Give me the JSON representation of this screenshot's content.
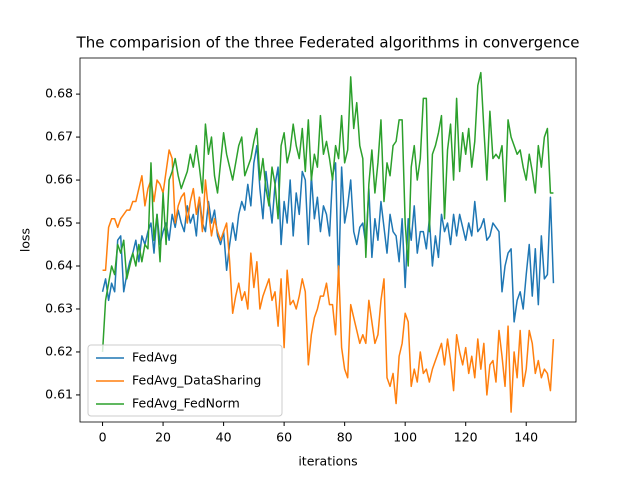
{
  "chart_data": {
    "type": "line",
    "title": "The comparision of the three Federated algorithms in convergence",
    "x_label": "iterations",
    "y_label": "loss",
    "x": [
      0,
      1,
      2,
      3,
      4,
      5,
      6,
      7,
      8,
      9,
      10,
      11,
      12,
      13,
      14,
      15,
      16,
      17,
      18,
      19,
      20,
      21,
      22,
      23,
      24,
      25,
      26,
      27,
      28,
      29,
      30,
      31,
      32,
      33,
      34,
      35,
      36,
      37,
      38,
      39,
      40,
      41,
      42,
      43,
      44,
      45,
      46,
      47,
      48,
      49,
      50,
      51,
      52,
      53,
      54,
      55,
      56,
      57,
      58,
      59,
      60,
      61,
      62,
      63,
      64,
      65,
      66,
      67,
      68,
      69,
      70,
      71,
      72,
      73,
      74,
      75,
      76,
      77,
      78,
      79,
      80,
      81,
      82,
      83,
      84,
      85,
      86,
      87,
      88,
      89,
      90,
      91,
      92,
      93,
      94,
      95,
      96,
      97,
      98,
      99,
      100,
      101,
      102,
      103,
      104,
      105,
      106,
      107,
      108,
      109,
      110,
      111,
      112,
      113,
      114,
      115,
      116,
      117,
      118,
      119,
      120,
      121,
      122,
      123,
      124,
      125,
      126,
      127,
      128,
      129,
      130,
      131,
      132,
      133,
      134,
      135,
      136,
      137,
      138,
      139,
      140,
      141,
      142,
      143,
      144,
      145,
      146,
      147,
      148,
      149
    ],
    "series": [
      {
        "name": "FedAvg",
        "color": "#1f77b4",
        "values": [
          0.634,
          0.637,
          0.632,
          0.636,
          0.634,
          0.646,
          0.647,
          0.634,
          0.638,
          0.641,
          0.643,
          0.646,
          0.641,
          0.647,
          0.645,
          0.648,
          0.65,
          0.643,
          0.652,
          0.645,
          0.648,
          0.65,
          0.646,
          0.652,
          0.649,
          0.653,
          0.65,
          0.648,
          0.654,
          0.65,
          0.652,
          0.647,
          0.656,
          0.65,
          0.648,
          0.655,
          0.65,
          0.653,
          0.647,
          0.645,
          0.648,
          0.639,
          0.645,
          0.65,
          0.646,
          0.652,
          0.655,
          0.653,
          0.659,
          0.654,
          0.664,
          0.668,
          0.658,
          0.651,
          0.662,
          0.656,
          0.65,
          0.659,
          0.663,
          0.645,
          0.655,
          0.65,
          0.66,
          0.647,
          0.657,
          0.652,
          0.662,
          0.66,
          0.645,
          0.661,
          0.651,
          0.656,
          0.648,
          0.654,
          0.652,
          0.647,
          0.661,
          0.664,
          0.636,
          0.663,
          0.65,
          0.654,
          0.66,
          0.648,
          0.645,
          0.649,
          0.65,
          0.645,
          0.658,
          0.642,
          0.651,
          0.646,
          0.655,
          0.649,
          0.643,
          0.652,
          0.648,
          0.647,
          0.641,
          0.651,
          0.635,
          0.651,
          0.646,
          0.654,
          0.643,
          0.648,
          0.648,
          0.644,
          0.651,
          0.64,
          0.647,
          0.642,
          0.652,
          0.648,
          0.65,
          0.645,
          0.652,
          0.647,
          0.652,
          0.649,
          0.646,
          0.65,
          0.647,
          0.655,
          0.648,
          0.649,
          0.651,
          0.646,
          0.647,
          0.65,
          0.649,
          0.648,
          0.634,
          0.64,
          0.643,
          0.644,
          0.627,
          0.632,
          0.634,
          0.63,
          0.638,
          0.645,
          0.633,
          0.644,
          0.631,
          0.647,
          0.637,
          0.638,
          0.656,
          0.636
        ]
      },
      {
        "name": "FedAvg_DataSharing",
        "color": "#ff7f0e",
        "values": [
          0.639,
          0.639,
          0.649,
          0.651,
          0.651,
          0.649,
          0.651,
          0.652,
          0.653,
          0.653,
          0.655,
          0.655,
          0.658,
          0.661,
          0.654,
          0.658,
          0.66,
          0.655,
          0.66,
          0.659,
          0.657,
          0.662,
          0.667,
          0.665,
          0.65,
          0.654,
          0.656,
          0.657,
          0.65,
          0.655,
          0.658,
          0.652,
          0.656,
          0.648,
          0.66,
          0.653,
          0.647,
          0.651,
          0.648,
          0.646,
          0.648,
          0.65,
          0.641,
          0.629,
          0.633,
          0.636,
          0.632,
          0.634,
          0.63,
          0.643,
          0.635,
          0.641,
          0.63,
          0.633,
          0.635,
          0.637,
          0.632,
          0.634,
          0.626,
          0.637,
          0.621,
          0.639,
          0.631,
          0.632,
          0.63,
          0.633,
          0.637,
          0.634,
          0.617,
          0.624,
          0.628,
          0.63,
          0.633,
          0.633,
          0.636,
          0.631,
          0.631,
          0.624,
          0.64,
          0.621,
          0.616,
          0.614,
          0.631,
          0.628,
          0.625,
          0.622,
          0.624,
          0.622,
          0.632,
          0.627,
          0.622,
          0.624,
          0.632,
          0.637,
          0.614,
          0.612,
          0.615,
          0.608,
          0.619,
          0.622,
          0.629,
          0.627,
          0.612,
          0.616,
          0.613,
          0.62,
          0.615,
          0.616,
          0.613,
          0.616,
          0.618,
          0.62,
          0.622,
          0.617,
          0.623,
          0.618,
          0.611,
          0.624,
          0.62,
          0.617,
          0.621,
          0.615,
          0.619,
          0.614,
          0.623,
          0.616,
          0.622,
          0.61,
          0.617,
          0.618,
          0.613,
          0.625,
          0.619,
          0.612,
          0.626,
          0.606,
          0.62,
          0.614,
          0.625,
          0.612,
          0.616,
          0.625,
          0.622,
          0.615,
          0.618,
          0.614,
          0.616,
          0.615,
          0.611,
          0.623
        ]
      },
      {
        "name": "FedAvg_FedNorm",
        "color": "#2ca02c",
        "values": [
          0.62,
          0.632,
          0.636,
          0.64,
          0.638,
          0.645,
          0.643,
          0.646,
          0.637,
          0.64,
          0.643,
          0.64,
          0.645,
          0.641,
          0.645,
          0.644,
          0.664,
          0.646,
          0.652,
          0.641,
          0.657,
          0.645,
          0.66,
          0.662,
          0.665,
          0.661,
          0.658,
          0.66,
          0.662,
          0.666,
          0.663,
          0.668,
          0.663,
          0.657,
          0.673,
          0.666,
          0.67,
          0.661,
          0.657,
          0.664,
          0.671,
          0.666,
          0.663,
          0.66,
          0.664,
          0.668,
          0.67,
          0.661,
          0.663,
          0.665,
          0.669,
          0.672,
          0.66,
          0.665,
          0.658,
          0.654,
          0.663,
          0.659,
          0.651,
          0.668,
          0.671,
          0.664,
          0.667,
          0.673,
          0.668,
          0.665,
          0.672,
          0.662,
          0.674,
          0.66,
          0.666,
          0.663,
          0.675,
          0.666,
          0.669,
          0.665,
          0.66,
          0.668,
          0.665,
          0.675,
          0.664,
          0.667,
          0.684,
          0.672,
          0.678,
          0.668,
          0.665,
          0.642,
          0.659,
          0.667,
          0.657,
          0.664,
          0.674,
          0.655,
          0.664,
          0.661,
          0.668,
          0.669,
          0.674,
          0.674,
          0.65,
          0.64,
          0.663,
          0.668,
          0.66,
          0.665,
          0.679,
          0.679,
          0.648,
          0.666,
          0.668,
          0.671,
          0.675,
          0.651,
          0.667,
          0.673,
          0.66,
          0.679,
          0.662,
          0.671,
          0.666,
          0.672,
          0.663,
          0.669,
          0.682,
          0.685,
          0.672,
          0.66,
          0.676,
          0.665,
          0.666,
          0.665,
          0.668,
          0.655,
          0.674,
          0.67,
          0.668,
          0.666,
          0.667,
          0.663,
          0.66,
          0.666,
          0.662,
          0.657,
          0.668,
          0.663,
          0.67,
          0.672,
          0.657,
          0.657
        ]
      }
    ],
    "xlim": [
      -7.45,
      156.45
    ],
    "ylim": [
      0.6037,
      0.6884
    ],
    "xticks": [
      0,
      20,
      40,
      60,
      80,
      100,
      120,
      140
    ],
    "yticks": [
      0.61,
      0.62,
      0.63,
      0.64,
      0.65,
      0.66,
      0.67,
      0.68
    ],
    "grid": false,
    "legend": "lower left"
  }
}
